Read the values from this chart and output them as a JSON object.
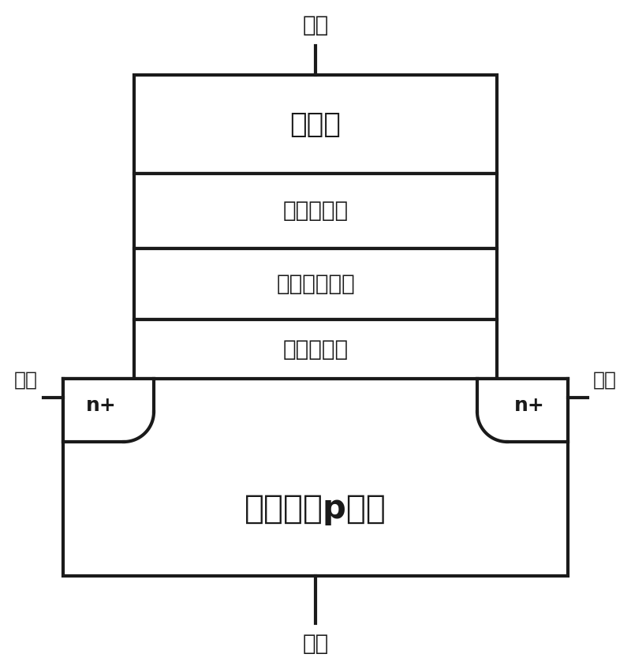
{
  "bg_color": "#ffffff",
  "line_color": "#1a1a1a",
  "fill_color": "#ffffff",
  "fig_width": 8.0,
  "fig_height": 8.48,
  "label_gate_top": "栅极",
  "label_source": "源极",
  "label_drain": "漏极",
  "label_substrate": "衯底",
  "label_control_gate": "控制栅",
  "label_top_dielectric": "顶层介质层",
  "label_storage": "光电子存储层",
  "label_bottom_dielectric": "底层介质层",
  "label_semiconductor": "半导体（p型）",
  "label_nplus_left": "n+",
  "label_nplus_right": "n+"
}
